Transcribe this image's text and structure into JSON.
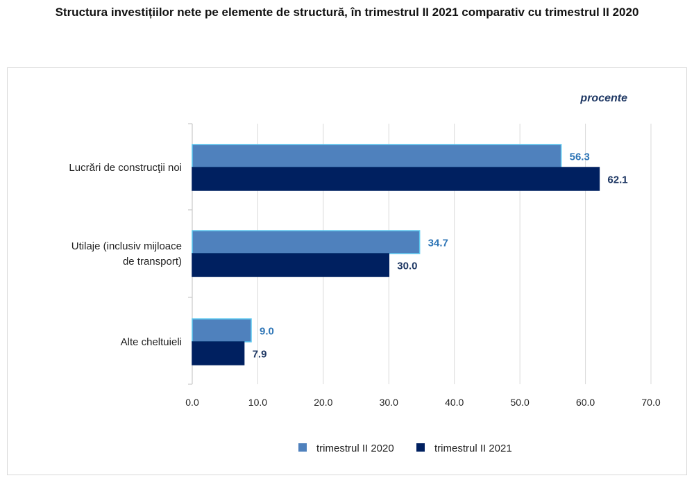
{
  "title": "Structura investițiilor nete pe elemente de structură, în trimestrul II 2021 comparativ cu trimestrul II 2020",
  "chart_data": {
    "type": "bar",
    "orientation": "horizontal",
    "unit_label": "procente",
    "categories": [
      "Lucrări de construcţii noi",
      "Utilaje (inclusiv mijloace de transport)",
      "Alte cheltuieli"
    ],
    "category_lines": [
      [
        "Lucrări de construcţii noi"
      ],
      [
        "Utilaje (inclusiv mijloace",
        "de transport)"
      ],
      [
        "Alte cheltuieli"
      ]
    ],
    "series": [
      {
        "name": "trimestrul II 2020",
        "values": [
          56.3,
          34.7,
          9.0
        ],
        "labels": [
          "56.3",
          "34.7",
          "9.0"
        ],
        "color": "#4f81bd",
        "border": "#5bc8f0",
        "label_color": "#2e75b6"
      },
      {
        "name": "trimestrul II 2021",
        "values": [
          62.1,
          30.0,
          7.9
        ],
        "labels": [
          "62.1",
          "30.0",
          "7.9"
        ],
        "color": "#002060",
        "border": "#002060",
        "label_color": "#1f3864"
      }
    ],
    "xlim": [
      0,
      70
    ],
    "xticks": [
      "0.0",
      "10.0",
      "20.0",
      "30.0",
      "40.0",
      "50.0",
      "60.0",
      "70.0"
    ],
    "grid": true,
    "legend": "bottom"
  }
}
